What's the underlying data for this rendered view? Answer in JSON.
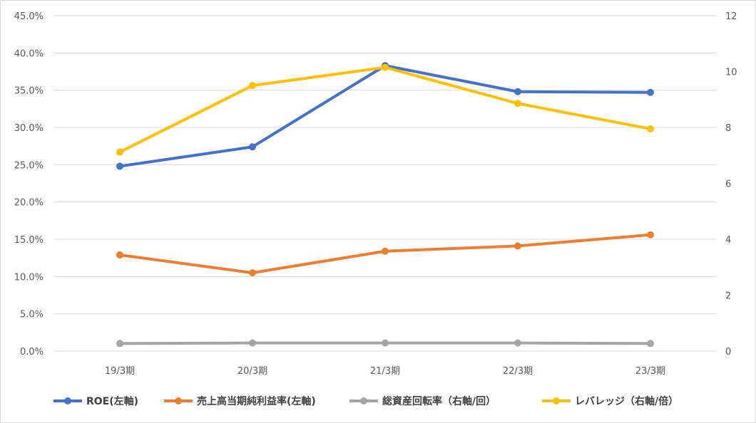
{
  "chart_data": {
    "type": "line",
    "categories": [
      "19/3期",
      "20/3期",
      "21/3期",
      "22/3期",
      "23/3期"
    ],
    "y_left": {
      "min": 0,
      "max": 45,
      "step": 5,
      "tick_labels": [
        "0.0%",
        "5.0%",
        "10.0%",
        "15.0%",
        "20.0%",
        "25.0%",
        "30.0%",
        "35.0%",
        "40.0%",
        "45.0%"
      ]
    },
    "y_right": {
      "min": 0,
      "max": 12,
      "step": 2,
      "tick_labels": [
        "0",
        "2",
        "4",
        "6",
        "8",
        "10",
        "12"
      ]
    },
    "grid": true,
    "legend_position": "bottom",
    "series": [
      {
        "name": "ROE(左軸)",
        "axis": "left",
        "color": "#4472C4",
        "values": [
          24.8,
          27.4,
          38.3,
          34.8,
          34.7
        ]
      },
      {
        "name": "売上高当期純利益率(左軸)",
        "axis": "left",
        "color": "#ED7D31",
        "values": [
          12.9,
          10.5,
          13.4,
          14.1,
          15.6
        ]
      },
      {
        "name": "総資産回転率（右軸/回）",
        "axis": "right",
        "color": "#A5A5A5",
        "values": [
          0.27,
          0.29,
          0.29,
          0.29,
          0.27
        ]
      },
      {
        "name": "レバレッジ（右軸/倍）",
        "axis": "right",
        "color": "#FFC000",
        "values": [
          7.12,
          9.5,
          10.15,
          8.86,
          7.95
        ]
      }
    ]
  }
}
